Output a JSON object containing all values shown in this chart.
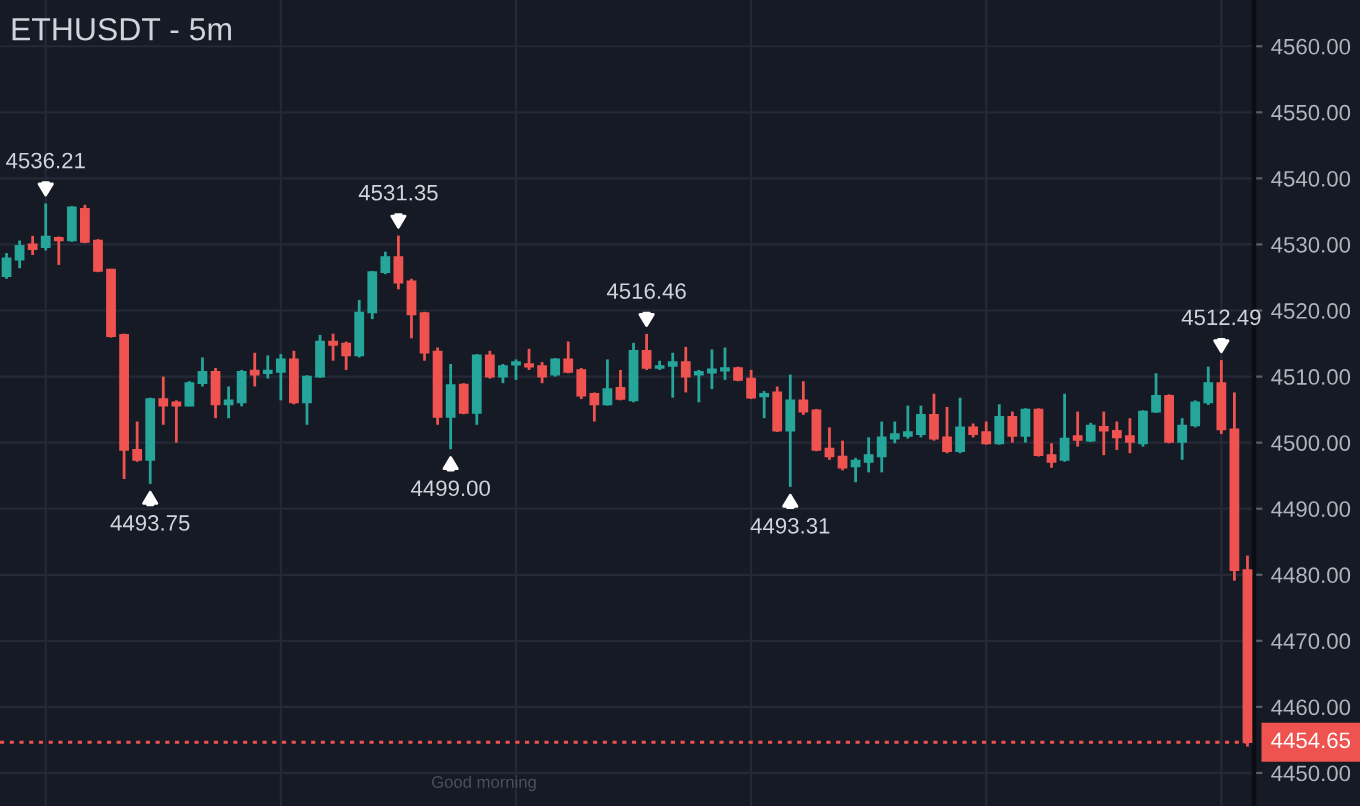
{
  "chart_data": {
    "type": "candlestick",
    "title": "ETHUSDT - 5m",
    "categories": [
      null,
      null,
      null,
      null,
      null,
      null,
      null,
      null,
      null,
      null,
      null,
      null,
      null,
      null,
      null,
      null,
      null,
      null,
      null,
      null,
      null,
      null,
      null,
      null,
      null,
      null,
      null,
      null,
      null,
      null,
      null,
      null,
      null,
      null,
      null,
      null,
      null,
      null,
      null,
      null,
      null,
      null,
      null,
      null,
      null,
      null,
      null,
      null,
      null,
      null,
      null,
      null,
      null,
      null,
      null,
      null,
      null,
      null,
      null,
      null,
      null,
      null,
      null,
      null,
      null,
      null,
      null,
      null,
      null,
      null,
      null,
      null,
      null,
      null,
      null,
      null,
      null,
      null,
      null,
      null,
      null,
      null,
      null,
      null,
      null,
      null,
      null,
      null,
      null,
      null,
      null,
      null,
      null,
      null,
      null,
      null
    ],
    "ohlc": [
      [
        4525.2,
        4528.7,
        4524.8,
        4527.9
      ],
      [
        4527.7,
        4530.6,
        4526.4,
        4529.8
      ],
      [
        4530.0,
        4531.3,
        4528.4,
        4529.3
      ],
      [
        4529.6,
        4536.21,
        4529.1,
        4531.2
      ],
      [
        4531.0,
        4531.2,
        4526.9,
        4530.6
      ],
      [
        4530.6,
        4535.8,
        4530.4,
        4535.6
      ],
      [
        4535.4,
        4536.0,
        4530.2,
        4530.4
      ],
      [
        4530.6,
        4530.8,
        4525.8,
        4526.0
      ],
      [
        4526.2,
        4526.3,
        4515.9,
        4516.1
      ],
      [
        4516.3,
        4516.5,
        4494.5,
        4498.9
      ],
      [
        4498.9,
        4503.2,
        4497.1,
        4497.4
      ],
      [
        4497.4,
        4506.8,
        4493.75,
        4506.6
      ],
      [
        4506.6,
        4510.0,
        4502.7,
        4505.6
      ],
      [
        4506.1,
        4506.4,
        4500.0,
        4505.6
      ],
      [
        4505.6,
        4509.3,
        4505.5,
        4509.0
      ],
      [
        4509.0,
        4512.9,
        4508.5,
        4510.7
      ],
      [
        4510.7,
        4511.3,
        4503.7,
        4505.8
      ],
      [
        4505.8,
        4508.5,
        4503.7,
        4506.4
      ],
      [
        4506.1,
        4511.0,
        4505.5,
        4510.7
      ],
      [
        4510.9,
        4513.6,
        4508.5,
        4510.3
      ],
      [
        4510.5,
        4513.2,
        4509.7,
        4510.9
      ],
      [
        4510.7,
        4513.4,
        4506.4,
        4512.6
      ],
      [
        4512.6,
        4513.9,
        4505.8,
        4506.1
      ],
      [
        4506.1,
        4510.2,
        4502.7,
        4510.0
      ],
      [
        4510.0,
        4516.3,
        4509.8,
        4515.3
      ],
      [
        4515.3,
        4516.5,
        4512.4,
        4514.8
      ],
      [
        4515.0,
        4515.3,
        4511.0,
        4513.2
      ],
      [
        4513.2,
        4521.6,
        4512.9,
        4519.7
      ],
      [
        4519.7,
        4526.0,
        4518.7,
        4525.8
      ],
      [
        4525.8,
        4528.9,
        4525.5,
        4528.1
      ],
      [
        4528.1,
        4531.35,
        4523.2,
        4524.2
      ],
      [
        4524.4,
        4524.8,
        4515.8,
        4519.4
      ],
      [
        4519.6,
        4519.8,
        4512.4,
        4513.6
      ],
      [
        4513.8,
        4514.4,
        4502.7,
        4503.9
      ],
      [
        4503.9,
        4511.9,
        4499.0,
        4508.7
      ],
      [
        4508.8,
        4509.0,
        4504.3,
        4504.5
      ],
      [
        4504.5,
        4513.4,
        4502.7,
        4513.2
      ],
      [
        4513.2,
        4513.9,
        4509.7,
        4510.0
      ],
      [
        4510.0,
        4511.9,
        4509.0,
        4511.6
      ],
      [
        4511.8,
        4512.6,
        4509.5,
        4512.2
      ],
      [
        4511.9,
        4514.2,
        4511.0,
        4511.5
      ],
      [
        4511.6,
        4512.2,
        4509.0,
        4510.0
      ],
      [
        4510.3,
        4512.8,
        4510.0,
        4512.6
      ],
      [
        4512.6,
        4515.3,
        4510.5,
        4510.7
      ],
      [
        4511.0,
        4511.3,
        4506.6,
        4507.1
      ],
      [
        4507.4,
        4507.6,
        4503.2,
        4505.8
      ],
      [
        4505.8,
        4512.6,
        4505.6,
        4508.1
      ],
      [
        4508.3,
        4511.0,
        4506.4,
        4506.6
      ],
      [
        4506.4,
        4515.1,
        4506.1,
        4513.9
      ],
      [
        4513.9,
        4516.46,
        4511.0,
        4511.3
      ],
      [
        4511.3,
        4512.4,
        4511.0,
        4511.6
      ],
      [
        4511.6,
        4513.6,
        4506.8,
        4512.2
      ],
      [
        4512.2,
        4514.5,
        4507.6,
        4510.0
      ],
      [
        4510.3,
        4511.0,
        4506.1,
        4510.7
      ],
      [
        4510.6,
        4514.1,
        4508.1,
        4511.1
      ],
      [
        4510.9,
        4514.4,
        4509.5,
        4511.3
      ],
      [
        4511.3,
        4511.5,
        4509.3,
        4509.5
      ],
      [
        4509.7,
        4511.0,
        4506.6,
        4506.8
      ],
      [
        4507.0,
        4507.8,
        4503.7,
        4507.4
      ],
      [
        4507.6,
        4508.5,
        4501.6,
        4501.8
      ],
      [
        4501.8,
        4510.3,
        4493.31,
        4506.4
      ],
      [
        4506.4,
        4509.3,
        4504.2,
        4504.7
      ],
      [
        4504.9,
        4505.1,
        4498.7,
        4498.9
      ],
      [
        4499.1,
        4502.3,
        4497.4,
        4497.9
      ],
      [
        4497.9,
        4500.3,
        4495.8,
        4496.2
      ],
      [
        4496.4,
        4497.7,
        4494.0,
        4497.3
      ],
      [
        4497.1,
        4500.8,
        4495.5,
        4498.1
      ],
      [
        4497.9,
        4503.2,
        4495.5,
        4500.8
      ],
      [
        4500.6,
        4503.2,
        4499.9,
        4501.3
      ],
      [
        4501.0,
        4505.6,
        4500.6,
        4501.6
      ],
      [
        4501.3,
        4505.6,
        4500.8,
        4504.2
      ],
      [
        4504.2,
        4507.4,
        4500.3,
        4500.6
      ],
      [
        4500.8,
        4505.4,
        4498.4,
        4498.7
      ],
      [
        4498.7,
        4506.8,
        4498.4,
        4502.3
      ],
      [
        4502.3,
        4502.9,
        4500.8,
        4501.3
      ],
      [
        4501.6,
        4503.2,
        4499.7,
        4499.9
      ],
      [
        4499.9,
        4505.8,
        4499.7,
        4503.9
      ],
      [
        4503.9,
        4504.7,
        4500.0,
        4501.0
      ],
      [
        4501.0,
        4505.2,
        4500.0,
        4505.0
      ],
      [
        4505.0,
        4505.2,
        4497.9,
        4498.1
      ],
      [
        4498.1,
        4499.9,
        4496.2,
        4497.1
      ],
      [
        4497.4,
        4507.4,
        4497.1,
        4500.6
      ],
      [
        4501.0,
        4504.7,
        4499.4,
        4500.4
      ],
      [
        4500.3,
        4503.0,
        4500.1,
        4502.6
      ],
      [
        4502.4,
        4504.7,
        4498.1,
        4501.8
      ],
      [
        4501.8,
        4503.2,
        4498.9,
        4500.8
      ],
      [
        4501.0,
        4503.7,
        4498.4,
        4500.1
      ],
      [
        4499.9,
        4504.9,
        4499.4,
        4504.7
      ],
      [
        4504.7,
        4510.5,
        4504.5,
        4507.1
      ],
      [
        4507.1,
        4507.3,
        4499.9,
        4500.1
      ],
      [
        4500.1,
        4503.7,
        4497.4,
        4502.6
      ],
      [
        4502.6,
        4506.4,
        4502.3,
        4506.1
      ],
      [
        4506.1,
        4511.5,
        4505.7,
        4509.0
      ],
      [
        4509.0,
        4512.49,
        4501.3,
        4502.0
      ],
      [
        4502.0,
        4507.6,
        4479.1,
        4480.7
      ],
      [
        4480.7,
        4482.9,
        4454.0,
        4454.65
      ]
    ],
    "colors": [
      "#26a69a",
      "#26a69a",
      "#ef5350",
      "#26a69a",
      "#ef5350",
      "#26a69a",
      "#ef5350",
      "#ef5350",
      "#ef5350",
      "#ef5350",
      "#ef5350",
      "#26a69a",
      "#ef5350",
      "#ef5350",
      "#26a69a",
      "#26a69a",
      "#ef5350",
      "#26a69a",
      "#26a69a",
      "#ef5350",
      "#26a69a",
      "#26a69a",
      "#ef5350",
      "#26a69a",
      "#26a69a",
      "#ef5350",
      "#ef5350",
      "#26a69a",
      "#26a69a",
      "#26a69a",
      "#ef5350",
      "#ef5350",
      "#ef5350",
      "#ef5350",
      "#26a69a",
      "#ef5350",
      "#26a69a",
      "#ef5350",
      "#26a69a",
      "#26a69a",
      "#ef5350",
      "#ef5350",
      "#26a69a",
      "#ef5350",
      "#ef5350",
      "#ef5350",
      "#26a69a",
      "#ef5350",
      "#26a69a",
      "#ef5350",
      "#26a69a",
      "#26a69a",
      "#ef5350",
      "#26a69a",
      "#26a69a",
      "#26a69a",
      "#ef5350",
      "#ef5350",
      "#26a69a",
      "#ef5350",
      "#26a69a",
      "#ef5350",
      "#ef5350",
      "#ef5350",
      "#ef5350",
      "#26a69a",
      "#26a69a",
      "#26a69a",
      "#26a69a",
      "#26a69a",
      "#26a69a",
      "#ef5350",
      "#ef5350",
      "#26a69a",
      "#ef5350",
      "#ef5350",
      "#26a69a",
      "#ef5350",
      "#26a69a",
      "#ef5350",
      "#ef5350",
      "#26a69a",
      "#ef5350",
      "#26a69a",
      "#ef5350",
      "#ef5350",
      "#ef5350",
      "#26a69a",
      "#26a69a",
      "#ef5350",
      "#26a69a",
      "#26a69a",
      "#26a69a",
      "#ef5350",
      "#ef5350",
      "#ef5350"
    ],
    "ylim": [
      4445,
      4567
    ],
    "yticks": [
      {
        "value": 4450,
        "label": "4450.00"
      },
      {
        "value": 4460,
        "label": "4460.00"
      },
      {
        "value": 4470,
        "label": "4470.00"
      },
      {
        "value": 4480,
        "label": "4480.00"
      },
      {
        "value": 4490,
        "label": "4490.00"
      },
      {
        "value": 4500,
        "label": "4500.00"
      },
      {
        "value": 4510,
        "label": "4510.00"
      },
      {
        "value": 4520,
        "label": "4520.00"
      },
      {
        "value": 4530,
        "label": "4530.00"
      },
      {
        "value": 4540,
        "label": "4540.00"
      },
      {
        "value": 4550,
        "label": "4550.00"
      },
      {
        "value": 4560,
        "label": "4560.00"
      }
    ],
    "grid": true,
    "tick_labels": "y",
    "ref_lines": [
      {
        "axis": "y",
        "value": 4454.65,
        "label": "4454.65",
        "color": "#ef5350",
        "line_style": "dotted"
      }
    ],
    "annotations": [
      "Good morning",
      {
        "text": "4536.21",
        "y": 4536.21
      },
      {
        "text": "4493.75",
        "y": 4493.75
      },
      {
        "text": "4531.35",
        "y": 4531.35
      },
      {
        "text": "4499.00",
        "y": 4499.0
      },
      {
        "text": "4516.46",
        "y": 4516.46
      },
      {
        "text": "4493.31",
        "y": 4493.31
      },
      {
        "text": "4512.49",
        "y": 4512.49
      }
    ]
  }
}
